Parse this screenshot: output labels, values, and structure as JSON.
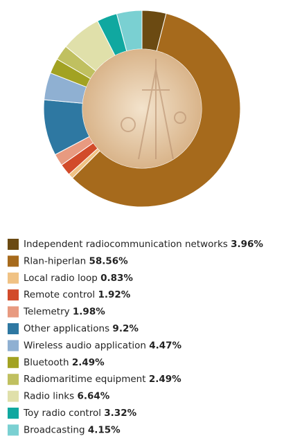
{
  "chart_data": {
    "type": "donut",
    "categories": [
      "Independent radiocommunication networks",
      "Rlan-hiperlan",
      "Local radio loop",
      "Remote control",
      "Telemetry",
      "Other applications",
      "Wireless audio application",
      "Bluetooth",
      "Radiomaritime equipment",
      "Radio links",
      "Toy radio control",
      "Broadcasting"
    ],
    "values": [
      3.96,
      58.56,
      0.83,
      1.92,
      1.98,
      9.2,
      4.47,
      2.49,
      2.49,
      6.64,
      3.32,
      4.15
    ],
    "value_labels": [
      "3.96%",
      "58.56%",
      "0.83%",
      "1.92%",
      "1.98%",
      "9.2%",
      "4.47%",
      "2.49%",
      "2.49%",
      "6.64%",
      "3.32%",
      "4.15%"
    ],
    "colors": [
      "#6b4a12",
      "#a66a1c",
      "#f0c284",
      "#d24b2a",
      "#e89a80",
      "#2e78a2",
      "#8fb0d2",
      "#a2a222",
      "#c0c060",
      "#e0e0aa",
      "#10a8a0",
      "#7ad0d2"
    ]
  }
}
